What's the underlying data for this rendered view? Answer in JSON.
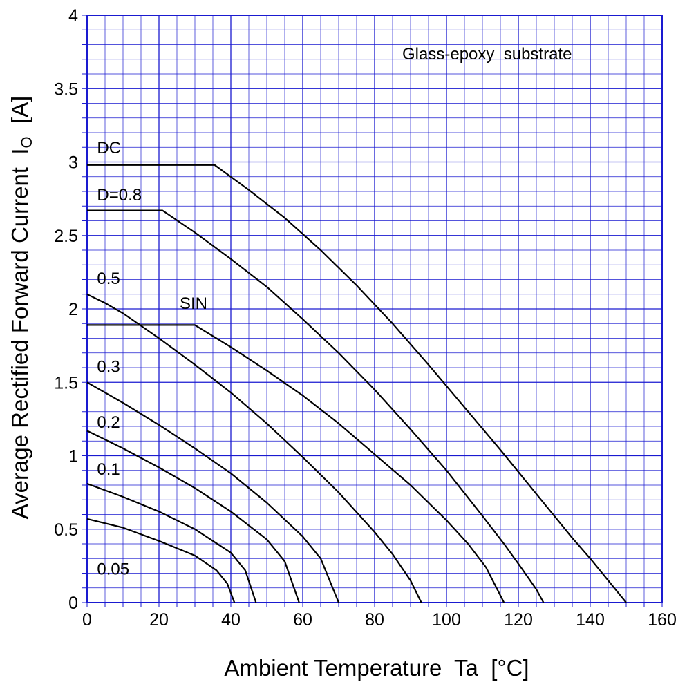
{
  "chart_data": {
    "type": "line",
    "title": "",
    "annotation": "Glass-epoxy  substrate",
    "xlabel": "Ambient Temperature  Ta  [°C]",
    "ylabel": "Average Rectified Forward Current  I",
    "ylabel_sub": "O",
    "ylabel_unit": "  [A]",
    "xlim": [
      0,
      160
    ],
    "ylim": [
      0,
      4
    ],
    "x_major_step": 20,
    "x_minor_step": 5,
    "y_major_step": 0.5,
    "y_minor_step": 0.1,
    "x_tick_labels": [
      "0",
      "20",
      "40",
      "60",
      "80",
      "100",
      "120",
      "140",
      "160"
    ],
    "y_tick_labels": [
      "0",
      "0.5",
      "1",
      "1.5",
      "2",
      "2.5",
      "3",
      "3.5",
      "4"
    ],
    "grid": true,
    "grid_color": "#1a1ad0",
    "line_color": "#000000",
    "legend": "none",
    "series": [
      {
        "name": "DC",
        "label_at": [
          2,
          3.06
        ],
        "points": [
          [
            0,
            2.98
          ],
          [
            35.5,
            2.98
          ],
          [
            45,
            2.81
          ],
          [
            55,
            2.62
          ],
          [
            65,
            2.4
          ],
          [
            75,
            2.16
          ],
          [
            85,
            1.9
          ],
          [
            95,
            1.62
          ],
          [
            105,
            1.33
          ],
          [
            115,
            1.04
          ],
          [
            125,
            0.74
          ],
          [
            135,
            0.44
          ],
          [
            140,
            0.3
          ],
          [
            145,
            0.15
          ],
          [
            150,
            0.0
          ]
        ]
      },
      {
        "name": "D=0.8",
        "label_at": [
          2,
          2.74
        ],
        "points": [
          [
            0,
            2.67
          ],
          [
            21,
            2.67
          ],
          [
            30,
            2.52
          ],
          [
            40,
            2.34
          ],
          [
            50,
            2.15
          ],
          [
            60,
            1.93
          ],
          [
            70,
            1.7
          ],
          [
            80,
            1.45
          ],
          [
            90,
            1.18
          ],
          [
            100,
            0.9
          ],
          [
            110,
            0.59
          ],
          [
            116,
            0.4
          ],
          [
            121,
            0.23
          ],
          [
            125,
            0.09
          ],
          [
            127,
            0.0
          ]
        ]
      },
      {
        "name": "SIN",
        "label_at": [
          25,
          2.0
        ],
        "points": [
          [
            0,
            1.89
          ],
          [
            30,
            1.89
          ],
          [
            40,
            1.74
          ],
          [
            50,
            1.58
          ],
          [
            60,
            1.41
          ],
          [
            70,
            1.22
          ],
          [
            80,
            1.01
          ],
          [
            90,
            0.8
          ],
          [
            100,
            0.56
          ],
          [
            106,
            0.4
          ],
          [
            111,
            0.24
          ],
          [
            116,
            0.0
          ]
        ]
      },
      {
        "name": "0.5",
        "label_at": [
          2,
          2.17
        ],
        "points": [
          [
            0,
            2.1
          ],
          [
            5,
            2.04
          ],
          [
            10,
            1.97
          ],
          [
            20,
            1.8
          ],
          [
            30,
            1.62
          ],
          [
            40,
            1.43
          ],
          [
            50,
            1.22
          ],
          [
            60,
            0.99
          ],
          [
            70,
            0.75
          ],
          [
            80,
            0.48
          ],
          [
            85,
            0.33
          ],
          [
            90,
            0.15
          ],
          [
            93,
            0.0
          ]
        ]
      },
      {
        "name": "0.3",
        "label_at": [
          2,
          1.57
        ],
        "points": [
          [
            0,
            1.5
          ],
          [
            10,
            1.36
          ],
          [
            20,
            1.21
          ],
          [
            30,
            1.05
          ],
          [
            40,
            0.88
          ],
          [
            50,
            0.68
          ],
          [
            60,
            0.45
          ],
          [
            65,
            0.3
          ],
          [
            70,
            0.0
          ]
        ]
      },
      {
        "name": "0.2",
        "label_at": [
          2,
          1.19
        ],
        "points": [
          [
            0,
            1.17
          ],
          [
            10,
            1.05
          ],
          [
            20,
            0.92
          ],
          [
            30,
            0.78
          ],
          [
            40,
            0.62
          ],
          [
            50,
            0.43
          ],
          [
            55,
            0.28
          ],
          [
            59,
            0.0
          ]
        ]
      },
      {
        "name": "0.1",
        "label_at": [
          2,
          0.87
        ],
        "points": [
          [
            0,
            0.81
          ],
          [
            10,
            0.72
          ],
          [
            20,
            0.62
          ],
          [
            30,
            0.5
          ],
          [
            40,
            0.34
          ],
          [
            44,
            0.22
          ],
          [
            47,
            0.0
          ]
        ]
      },
      {
        "name": "0.05",
        "label_at": [
          2,
          0.19
        ],
        "points": [
          [
            0,
            0.57
          ],
          [
            10,
            0.51
          ],
          [
            20,
            0.42
          ],
          [
            30,
            0.32
          ],
          [
            36,
            0.22
          ],
          [
            39,
            0.13
          ],
          [
            41,
            0.0
          ]
        ]
      }
    ]
  }
}
